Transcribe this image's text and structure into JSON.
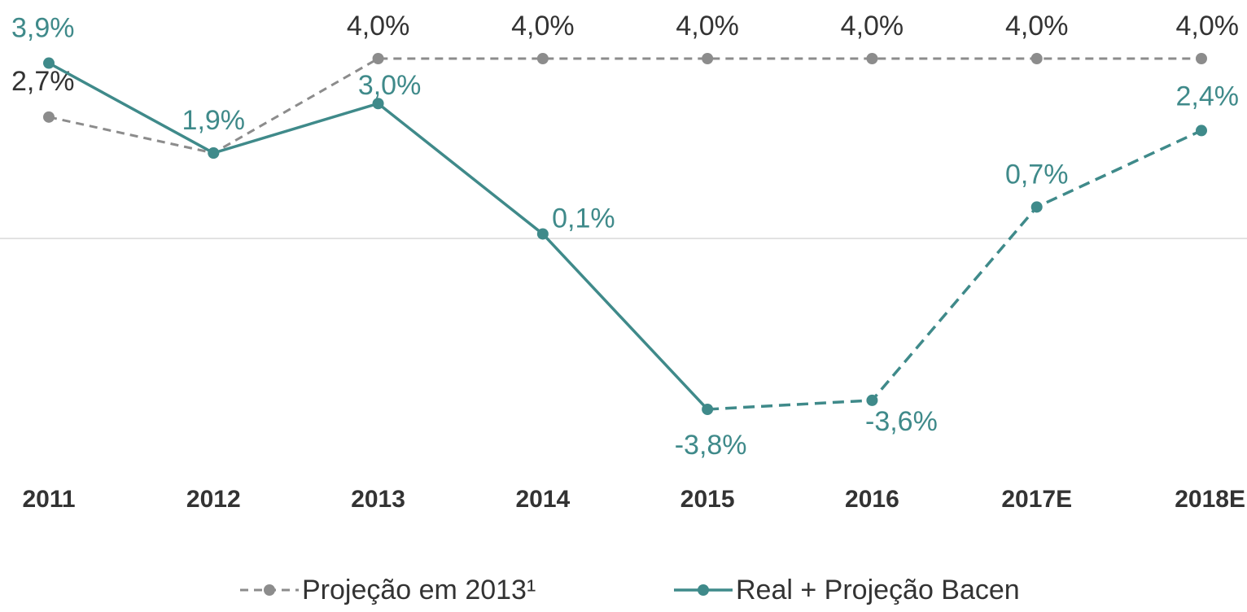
{
  "chart_data": {
    "type": "line",
    "categories": [
      "2011",
      "2012",
      "2013",
      "2014",
      "2015",
      "2016",
      "2017E",
      "2018E"
    ],
    "ylim": [
      -4,
      4
    ],
    "series": [
      {
        "name": "Projeção em 2013¹",
        "color": "#8c8c8c",
        "label_color": "#333333",
        "dash_from": 0,
        "values": [
          2.7,
          1.9,
          4.0,
          4.0,
          4.0,
          4.0,
          4.0,
          4.0
        ],
        "value_labels": [
          "2,7%",
          null,
          "4,0%",
          "4,0%",
          "4,0%",
          "4,0%",
          "4,0%",
          "4,0%"
        ]
      },
      {
        "name": "Real + Projeção Bacen",
        "color": "#3f8a8a",
        "label_color": "#3f8a8a",
        "dash_from": 4,
        "values": [
          3.9,
          1.9,
          3.0,
          0.1,
          -3.8,
          -3.6,
          0.7,
          2.4
        ],
        "value_labels": [
          "3,9%",
          "1,9%",
          "3,0%",
          "0,1%",
          "-3,8%",
          "-3,6%",
          "0,7%",
          "2,4%"
        ]
      }
    ]
  }
}
